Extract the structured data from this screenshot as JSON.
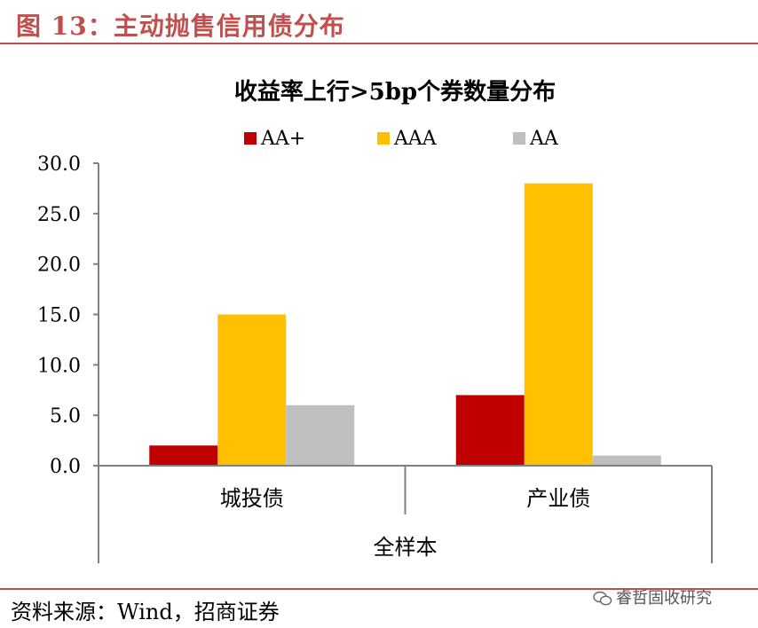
{
  "figure": {
    "title": "图 13：主动抛售信用债分布",
    "source": "资料来源：Wind，招商证券",
    "watermark": "睿哲固收研究",
    "watermark_icon": "wechat-icon"
  },
  "chart_data": {
    "type": "bar",
    "title": "收益率上行>5bp个券数量分布",
    "categories": [
      "城投债",
      "产业债"
    ],
    "group_label": "全样本",
    "series": [
      {
        "name": "AA+",
        "color": "#c00000",
        "values": [
          2,
          7
        ]
      },
      {
        "name": "AAA",
        "color": "#ffc000",
        "values": [
          15,
          28
        ]
      },
      {
        "name": "AA",
        "color": "#bfbfbf",
        "values": [
          6,
          1
        ]
      }
    ],
    "yticks": [
      "0.0",
      "5.0",
      "10.0",
      "15.0",
      "20.0",
      "25.0",
      "30.0"
    ],
    "ylim": [
      0,
      30
    ],
    "grid": false,
    "legend": "top"
  }
}
